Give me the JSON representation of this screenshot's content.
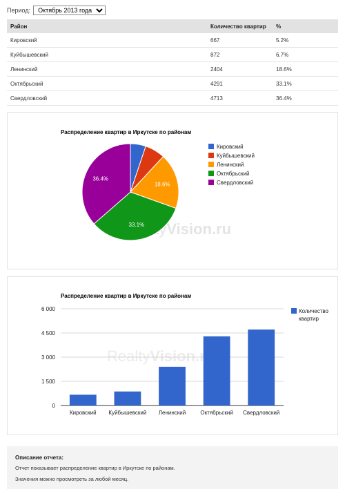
{
  "period": {
    "label": "Период:",
    "selected": "Октябрь 2013 года"
  },
  "table": {
    "headers": [
      "Район",
      "Количество квартир",
      "%"
    ],
    "rows": [
      [
        "Кировский",
        "667",
        "5.2%"
      ],
      [
        "Куйбышевский",
        "872",
        "6.7%"
      ],
      [
        "Ленинский",
        "2404",
        "18.6%"
      ],
      [
        "Октябрьский",
        "4291",
        "33.1%"
      ],
      [
        "Свердловский",
        "4713",
        "36.4%"
      ]
    ]
  },
  "chart_data": [
    {
      "type": "pie",
      "title": "Распределение квартир в Иркутске по районам",
      "categories": [
        "Кировский",
        "Куйбышевский",
        "Ленинский",
        "Октябрьский",
        "Свердловский"
      ],
      "values": [
        667,
        872,
        2404,
        4291,
        4713
      ],
      "slice_labels": [
        "",
        "",
        "18.6%",
        "33.1%",
        "36.4%"
      ],
      "colors": [
        "#3366cc",
        "#dc3912",
        "#ff9900",
        "#109618",
        "#990099"
      ],
      "legend": "right"
    },
    {
      "type": "bar",
      "title": "Распределение квартир в Иркутске по районам",
      "categories": [
        "Кировский",
        "Куйбышевский",
        "Ленинский",
        "Октябрьский",
        "Свердловский"
      ],
      "series": [
        {
          "name": "Количество квартир",
          "values": [
            667,
            872,
            2404,
            4291,
            4713
          ],
          "color": "#3366cc"
        }
      ],
      "ylim": [
        0,
        6000
      ],
      "yticks": [
        0,
        1500,
        3000,
        4500,
        6000
      ],
      "ytick_labels": [
        "0",
        "1 500",
        "3 000",
        "4 500",
        "6 000"
      ],
      "grid": true,
      "legend": "right"
    }
  ],
  "watermark": {
    "prefix": "Realty",
    "suffix": "Vision.ru"
  },
  "description": {
    "title": "Описание отчета:",
    "lines": [
      "Отчет показывает распределение квартир в Иркутске по районам.",
      "Значения можно просмотреть за любой месяц."
    ]
  }
}
